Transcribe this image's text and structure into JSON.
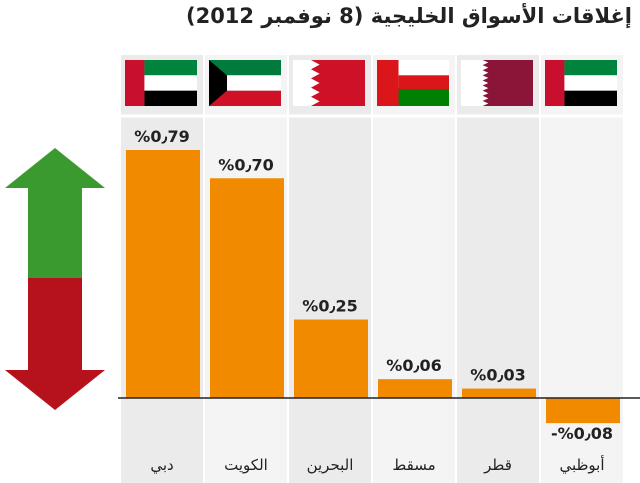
{
  "title": "إغلاقات الأسواق الخليجية (8 نوفمبر 2012)",
  "chart_data": {
    "type": "bar",
    "title": "إغلاقات الأسواق الخليجية (8 نوفمبر 2012)",
    "unit": "%",
    "categories": [
      "دبي",
      "الكويت",
      "البحرين",
      "مسقط",
      "قطر",
      "أبوظبي"
    ],
    "flags": [
      "uae-flag",
      "kuwait-flag",
      "bahrain-flag",
      "oman-flag",
      "qatar-flag",
      "uae-flag"
    ],
    "values": [
      0.79,
      0.7,
      0.25,
      0.06,
      0.03,
      -0.08
    ],
    "value_labels": [
      "%0٫79",
      "%0٫70",
      "%0٫25",
      "%0٫06",
      "%0٫03",
      "-%0٫08"
    ],
    "ylim": [
      -0.1,
      0.82
    ],
    "bar_color": "#f28a00",
    "up_arrow_color": "#3a9a2f",
    "down_arrow_color": "#b5121b",
    "grid": false
  }
}
